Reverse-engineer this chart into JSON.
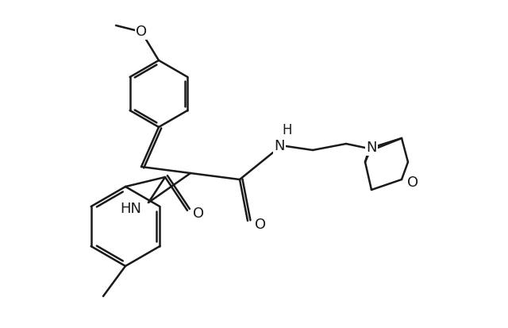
{
  "bg_color": "#ffffff",
  "line_color": "#1a1a1a",
  "line_width": 1.8,
  "font_size": 13,
  "figsize": [
    6.4,
    4.13
  ],
  "dpi": 100,
  "xlim": [
    0,
    640
  ],
  "ylim": [
    0,
    413
  ]
}
